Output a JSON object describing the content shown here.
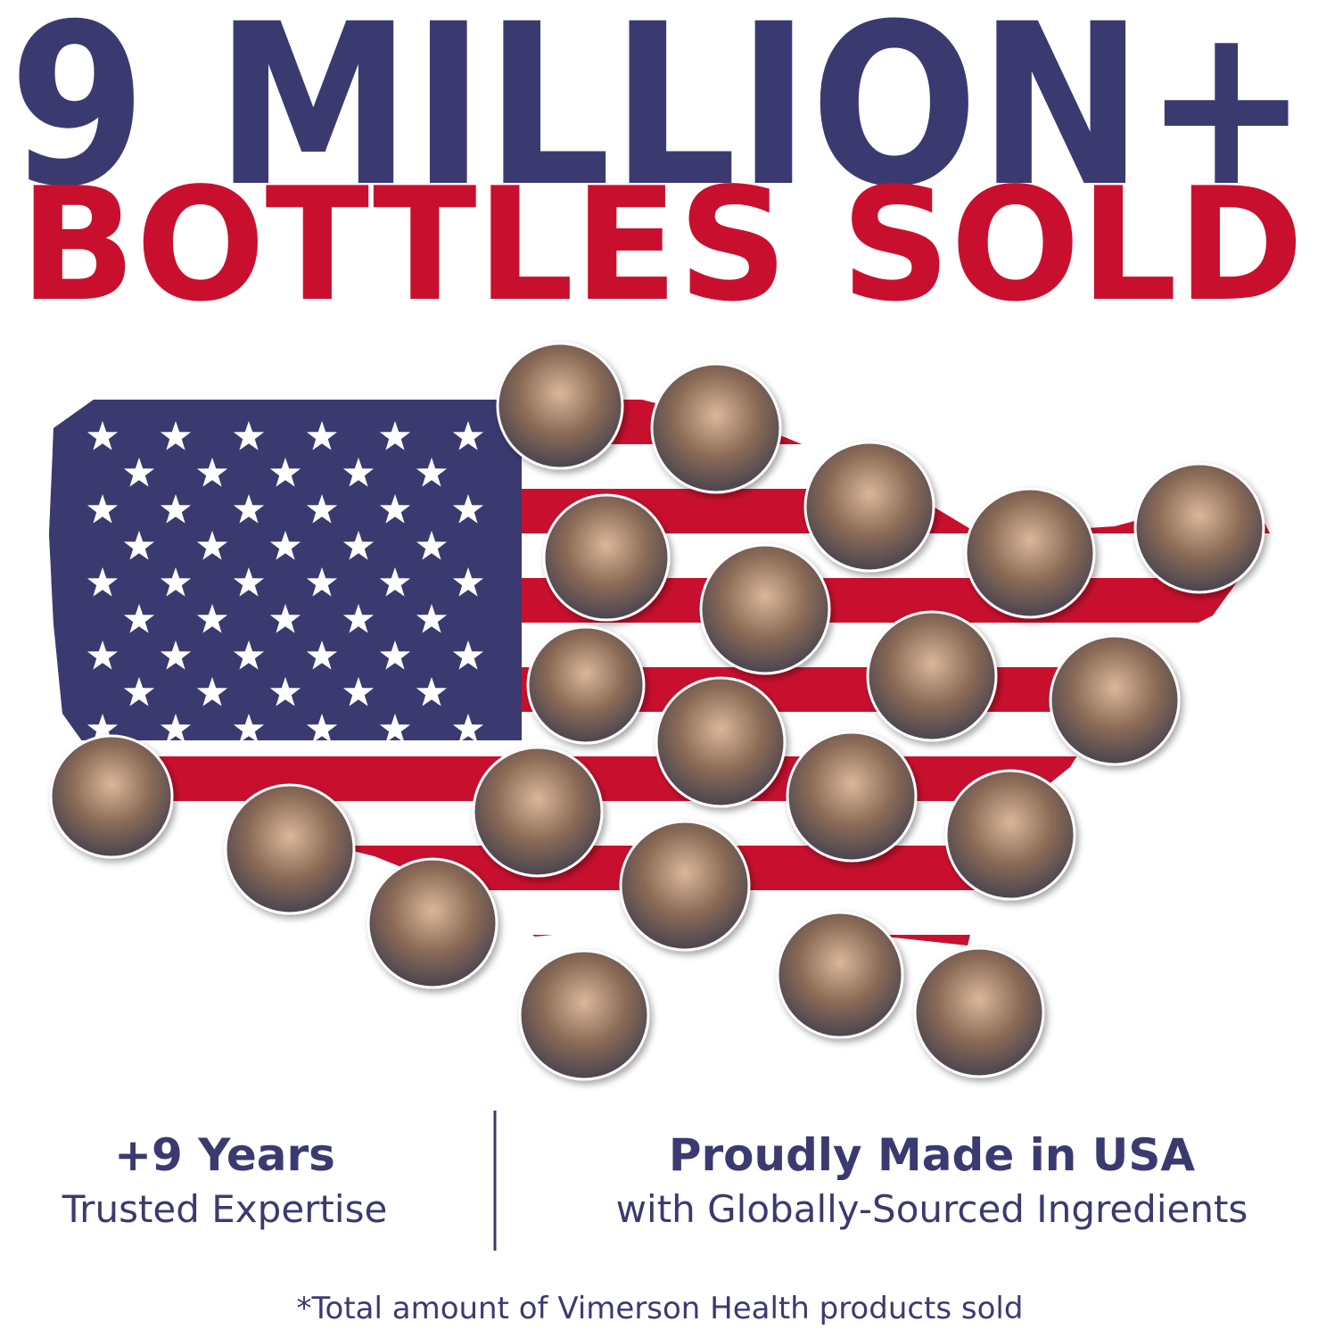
{
  "headline": {
    "line1": "9 MILLION+",
    "line2": "BOTTLES SOLD"
  },
  "stats": [
    {
      "title": "+9 Years",
      "subtitle": "Trusted Expertise"
    },
    {
      "title": "Proudly Made in USA",
      "subtitle": "with Globally-Sourced Ingredients"
    }
  ],
  "footnote": "*Total amount of Vimerson Health products sold"
}
